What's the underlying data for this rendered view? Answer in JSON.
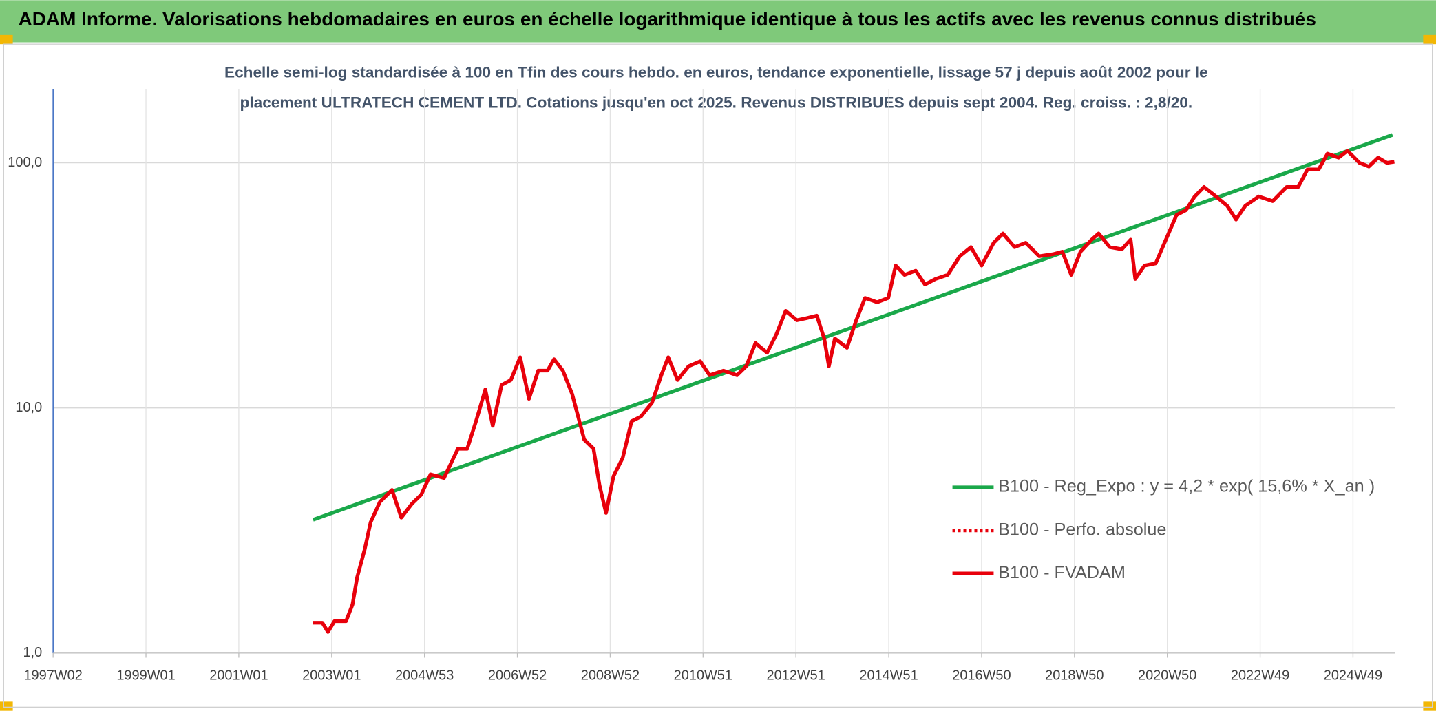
{
  "chart_data": {
    "type": "line",
    "title": "ADAM Informe. Valorisations hebdomadaires en euros en échelle logarithmique identique à tous les actifs avec les revenus connus distribués",
    "subtitle": [
      "Echelle semi-log standardisée à 100 en Tfin des cours hebdo. en euros, tendance exponentielle, lissage 57 j depuis août 2002 pour le",
      "placement ULTRATECH CEMENT LTD. Cotations jusqu'en oct 2025. Revenus DISTRIBUES depuis sept 2004. Reg. croiss. : 2,8/20."
    ],
    "yscale": "log",
    "grid": true,
    "legend_position": "right",
    "xlim": [
      1997.0,
      2025.9
    ],
    "xticks": [
      {
        "value": 1997.0,
        "label": "1997W02"
      },
      {
        "value": 1999.0,
        "label": "1999W01"
      },
      {
        "value": 2001.0,
        "label": "2001W01"
      },
      {
        "value": 2003.0,
        "label": "2003W01"
      },
      {
        "value": 2005.0,
        "label": "2004W53"
      },
      {
        "value": 2007.0,
        "label": "2006W52"
      },
      {
        "value": 2009.0,
        "label": "2008W52"
      },
      {
        "value": 2011.0,
        "label": "2010W51"
      },
      {
        "value": 2013.0,
        "label": "2012W51"
      },
      {
        "value": 2015.0,
        "label": "2014W51"
      },
      {
        "value": 2017.0,
        "label": "2016W50"
      },
      {
        "value": 2019.0,
        "label": "2018W50"
      },
      {
        "value": 2021.0,
        "label": "2020W50"
      },
      {
        "value": 2023.0,
        "label": "2022W49"
      },
      {
        "value": 2025.0,
        "label": "2024W49"
      }
    ],
    "ylim": [
      1,
      200
    ],
    "yticks": [
      {
        "value": 1,
        "label": "1,0"
      },
      {
        "value": 10,
        "label": "10,0"
      },
      {
        "value": 100,
        "label": "100,0"
      }
    ],
    "series": [
      {
        "name": "B100 - Reg_Expo : y = 4,2 * exp( 15,6% *  X_an )",
        "color": "#1aa84a",
        "line_style": "solid",
        "x": [
          2002.6,
          2025.85
        ],
        "values": [
          3.5,
          130
        ]
      },
      {
        "name": "B100 - Perfo. absolue",
        "color": "#e8000b",
        "line_style": "dotted",
        "x": [],
        "values": []
      },
      {
        "name": "B100 - FVADAM",
        "color": "#e8000b",
        "line_style": "solid",
        "x": [
          2002.6,
          2002.8,
          2002.92,
          2003.06,
          2003.31,
          2003.45,
          2003.55,
          2003.71,
          2003.84,
          2004.04,
          2004.3,
          2004.5,
          2004.73,
          2004.93,
          2005.13,
          2005.42,
          2005.72,
          2005.92,
          2006.11,
          2006.31,
          2006.47,
          2006.66,
          2006.86,
          2007.06,
          2007.25,
          2007.45,
          2007.65,
          2007.79,
          2007.98,
          2008.18,
          2008.44,
          2008.64,
          2008.77,
          2008.91,
          2009.07,
          2009.27,
          2009.46,
          2009.66,
          2009.9,
          2010.1,
          2010.25,
          2010.45,
          2010.69,
          2010.94,
          2011.14,
          2011.44,
          2011.73,
          2011.93,
          2012.13,
          2012.38,
          2012.58,
          2012.78,
          2013.02,
          2013.21,
          2013.45,
          2013.61,
          2013.71,
          2013.84,
          2014.1,
          2014.3,
          2014.49,
          2014.75,
          2014.99,
          2015.15,
          2015.34,
          2015.58,
          2015.78,
          2016.01,
          2016.27,
          2016.53,
          2016.77,
          2017.0,
          2017.26,
          2017.46,
          2017.71,
          2017.95,
          2018.24,
          2018.54,
          2018.74,
          2018.93,
          2019.13,
          2019.37,
          2019.52,
          2019.76,
          2020.02,
          2020.21,
          2020.31,
          2020.51,
          2020.75,
          2020.94,
          2021.2,
          2021.4,
          2021.59,
          2021.79,
          2022.05,
          2022.29,
          2022.48,
          2022.68,
          2022.97,
          2023.27,
          2023.57,
          2023.82,
          2024.02,
          2024.26,
          2024.45,
          2024.69,
          2024.88,
          2025.14,
          2025.34,
          2025.54,
          2025.73,
          2025.89
        ],
        "values": [
          1.33,
          1.33,
          1.22,
          1.35,
          1.35,
          1.58,
          2.04,
          2.64,
          3.42,
          4.14,
          4.63,
          3.57,
          4.07,
          4.43,
          5.36,
          5.18,
          6.82,
          6.82,
          8.83,
          11.9,
          8.46,
          12.4,
          13.0,
          16.1,
          10.9,
          14.2,
          14.2,
          15.8,
          14.2,
          11.4,
          7.43,
          6.82,
          4.83,
          3.73,
          5.26,
          6.26,
          8.83,
          9.22,
          10.5,
          13.6,
          16.1,
          13.0,
          14.8,
          15.5,
          13.6,
          14.2,
          13.6,
          14.8,
          18.4,
          16.8,
          20.0,
          24.9,
          22.8,
          23.2,
          23.8,
          19.2,
          14.8,
          19.2,
          17.6,
          22.8,
          28.1,
          27.0,
          28.1,
          38.1,
          34.9,
          36.3,
          31.9,
          33.6,
          34.9,
          41.6,
          45.3,
          38.1,
          47.2,
          51.5,
          45.3,
          47.2,
          41.6,
          42.4,
          43.4,
          34.9,
          43.4,
          48.6,
          51.5,
          45.3,
          44.4,
          48.6,
          33.6,
          38.1,
          38.9,
          47.2,
          61.3,
          64.1,
          72.9,
          79.7,
          72.9,
          66.8,
          58.7,
          66.8,
          72.9,
          69.8,
          79.7,
          79.7,
          94.0,
          94.0,
          109,
          105,
          112,
          100,
          96.6,
          105,
          100,
          101
        ]
      }
    ]
  }
}
